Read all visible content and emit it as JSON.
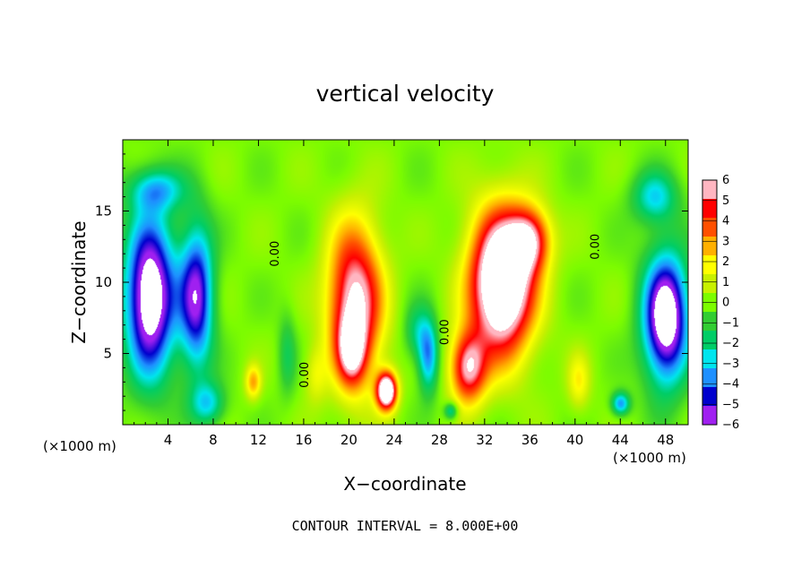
{
  "chart_data": {
    "type": "heatmap",
    "title": "vertical velocity",
    "xlabel": "X−coordinate",
    "ylabel": "Z−coordinate",
    "x_unit": "(×1000 m)",
    "y_unit": "(×1000 m)",
    "xlim": [
      0,
      50
    ],
    "ylim": [
      0,
      20
    ],
    "x_ticks": [
      4,
      8,
      12,
      16,
      20,
      24,
      28,
      32,
      36,
      40,
      44,
      48
    ],
    "x_tick_labels": [
      "4",
      "8",
      "12",
      "16",
      "20",
      "24",
      "28",
      "32",
      "36",
      "40",
      "44",
      "48"
    ],
    "y_ticks": [
      5,
      10,
      15
    ],
    "y_tick_labels": [
      "5",
      "10",
      "15"
    ],
    "colorbar": {
      "min": -6,
      "max": 6,
      "ticks": [
        6,
        5,
        4,
        3,
        2,
        1,
        0,
        -1,
        -2,
        -3,
        -4,
        -5,
        -6
      ],
      "tick_labels": [
        "6",
        "5",
        "4",
        "3",
        "2",
        "1",
        "0",
        "−1",
        "−2",
        "−3",
        "−4",
        "−5",
        "−6"
      ],
      "colors": [
        "#a020f0",
        "#0000cd",
        "#1e90ff",
        "#00e5ee",
        "#00cd66",
        "#32cd32",
        "#7cfc00",
        "#c8f000",
        "#ffff00",
        "#ffb000",
        "#ff5000",
        "#ff0000",
        "#ffb6c1"
      ],
      "saturation_color": "#ffffff"
    },
    "features": [
      {
        "x": 2.4,
        "z": 9,
        "sx": 2.2,
        "sz": 5.5,
        "amp": -8
      },
      {
        "x": 6.5,
        "z": 9,
        "sx": 1.5,
        "sz": 5,
        "amp": -6
      },
      {
        "x": 7.5,
        "z": 1.5,
        "sx": 1.5,
        "sz": 1.5,
        "amp": -3
      },
      {
        "x": 3,
        "z": 16.5,
        "sx": 2.5,
        "sz": 1.5,
        "amp": -3
      },
      {
        "x": 20.5,
        "z": 8.5,
        "sx": 2.4,
        "sz": 5.5,
        "amp": 7
      },
      {
        "x": 20.2,
        "z": 5.2,
        "sx": 1.2,
        "sz": 2.3,
        "amp": 4
      },
      {
        "x": 23.3,
        "z": 2.4,
        "sx": 0.9,
        "sz": 1.3,
        "amp": 9
      },
      {
        "x": 27,
        "z": 4.8,
        "sx": 0.9,
        "sz": 2.5,
        "amp": -4
      },
      {
        "x": 26,
        "z": 6.5,
        "sx": 1.2,
        "sz": 2,
        "amp": -2
      },
      {
        "x": 30.5,
        "z": 4,
        "sx": 1.6,
        "sz": 2.5,
        "amp": 6
      },
      {
        "x": 33.5,
        "z": 10,
        "sx": 2.8,
        "sz": 5,
        "amp": 10
      },
      {
        "x": 36,
        "z": 13,
        "sx": 1.8,
        "sz": 2.2,
        "amp": 5
      },
      {
        "x": 40.3,
        "z": 3,
        "sx": 1,
        "sz": 2,
        "amp": 2
      },
      {
        "x": 44,
        "z": 1.5,
        "sx": 0.8,
        "sz": 0.8,
        "amp": -4
      },
      {
        "x": 48,
        "z": 7.5,
        "sx": 2,
        "sz": 4.5,
        "amp": -8
      },
      {
        "x": 47,
        "z": 16,
        "sx": 2,
        "sz": 1.8,
        "amp": -3
      },
      {
        "x": 11.5,
        "z": 3,
        "sx": 0.7,
        "sz": 1.2,
        "amp": 3
      },
      {
        "x": 14.5,
        "z": 5,
        "sx": 0.8,
        "sz": 3,
        "amp": -1.5
      },
      {
        "x": 17,
        "z": 3.5,
        "sx": 1,
        "sz": 2,
        "amp": 1.5
      },
      {
        "x": 29,
        "z": 1,
        "sx": 0.6,
        "sz": 0.6,
        "amp": -3
      }
    ],
    "contour_labels": [
      {
        "text": "0.00",
        "x": 13.8,
        "z": 12
      },
      {
        "text": "0.00",
        "x": 16.4,
        "z": 3.5
      },
      {
        "text": "0.00",
        "x": 28.8,
        "z": 6.5
      },
      {
        "text": "0.00",
        "x": 42.1,
        "z": 12.5
      }
    ]
  },
  "footer": "CONTOUR INTERVAL = 8.000E+00"
}
